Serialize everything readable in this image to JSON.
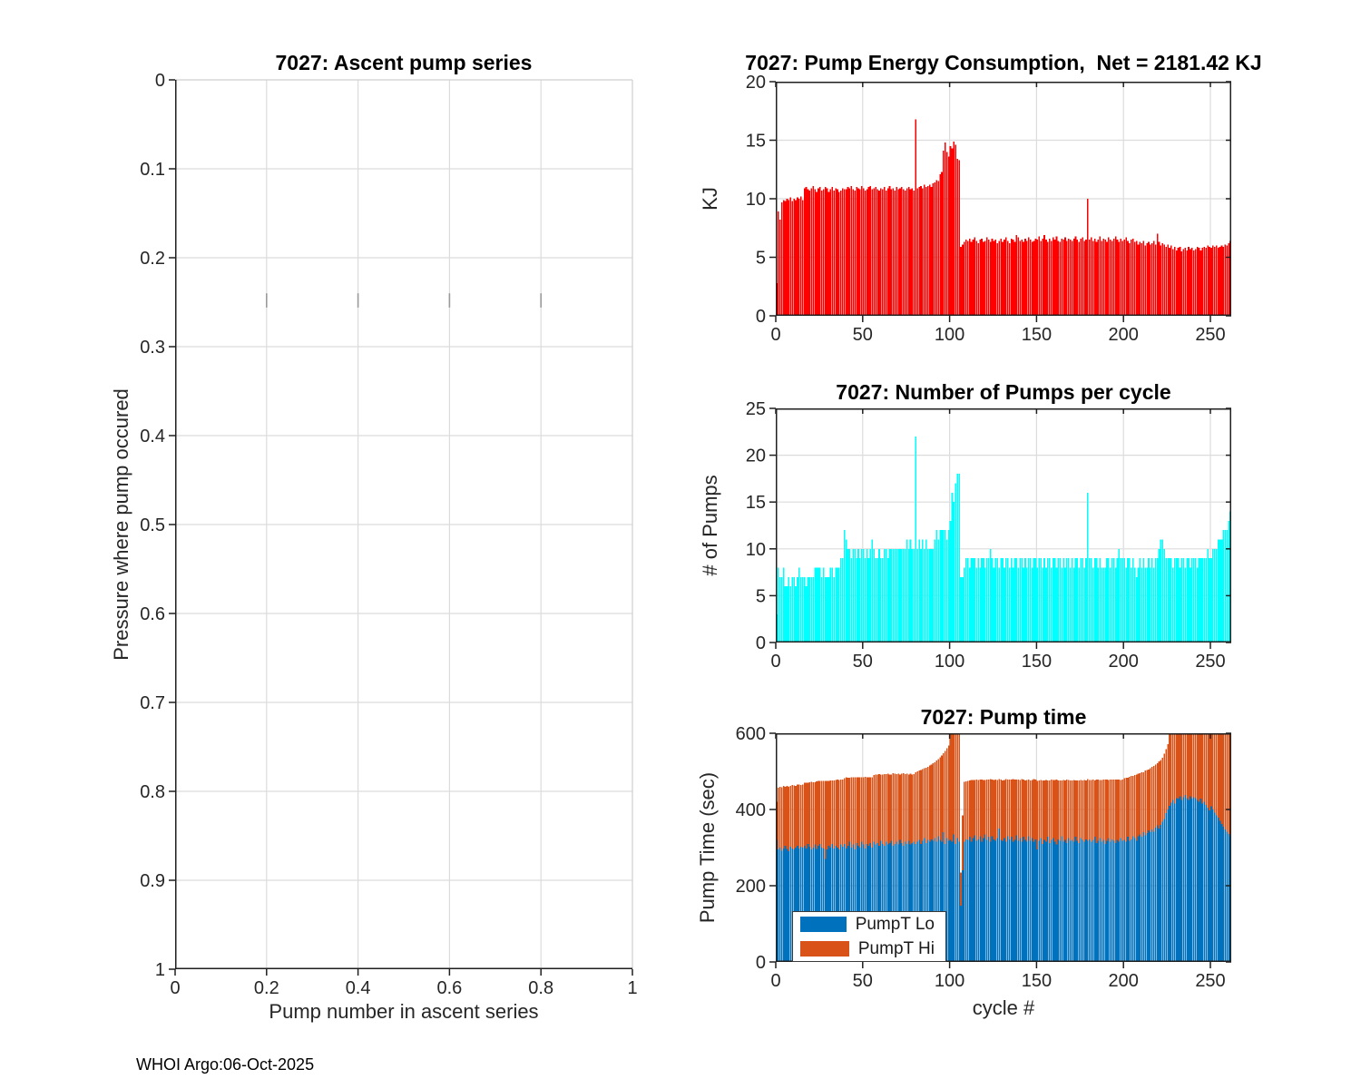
{
  "figure": {
    "footer": "WHOI Argo:06-Oct-2025",
    "background": "#ffffff",
    "axis_color": "#1f1f1f",
    "grid_color": "#dcdcdc",
    "tick_label_color": "#262626"
  },
  "chart_data": [
    {
      "id": "ascent",
      "type": "bar",
      "title": "7027: Ascent pump series",
      "xlabel": "Pump number in ascent series",
      "ylabel": "Pressure where pump occured",
      "xlim": [
        0,
        1
      ],
      "ylim": [
        0,
        1
      ],
      "y_reversed": true,
      "grid": true,
      "xticks": [
        0,
        0.2,
        0.4,
        0.6,
        0.8,
        1
      ],
      "xtick_labels": [
        "0",
        "0.2",
        "0.4",
        "0.6",
        "0.8",
        "1"
      ],
      "yticks": [
        0,
        0.1,
        0.2,
        0.3,
        0.4,
        0.5,
        0.6,
        0.7,
        0.8,
        0.9,
        1
      ],
      "ytick_labels": [
        "0",
        "0.1",
        "0.2",
        "0.3",
        "0.4",
        "0.5",
        "0.6",
        "0.7",
        "0.8",
        "0.9",
        "1"
      ],
      "values": [],
      "note": "empty axes - no pump data plotted",
      "stray_axis_marks": {
        "x": [
          0.2,
          0.4,
          0.6,
          0.8
        ],
        "y_span": [
          0.24,
          0.256
        ]
      }
    },
    {
      "id": "energy",
      "type": "bar",
      "title": "7027: Pump Energy Consumption,  Net = 2181.42 KJ",
      "net_kj": "2181.42",
      "ylabel": "KJ",
      "color": "#ff0000",
      "xlim": [
        0,
        262
      ],
      "ylim": [
        0,
        20
      ],
      "grid": true,
      "xticks": [
        0,
        50,
        100,
        150,
        200,
        250
      ],
      "xtick_labels": [
        "0",
        "50",
        "100",
        "150",
        "200",
        "250"
      ],
      "yticks": [
        0,
        5,
        10,
        15,
        20
      ],
      "ytick_labels": [
        "0",
        "5",
        "10",
        "15",
        "20"
      ],
      "values": [
        2.8,
        8.9,
        8.2,
        9.7,
        9.9,
        9.8,
        10,
        9.9,
        10.1,
        9.8,
        10,
        9.9,
        10.1,
        10,
        10.2,
        9.9,
        10.9,
        11,
        10.8,
        10.7,
        10.9,
        11.1,
        10.8,
        10.6,
        10.9,
        11,
        10.7,
        10.8,
        11,
        10.9,
        10.6,
        10.8,
        11,
        10.7,
        10.9,
        10.8,
        10.6,
        10.7,
        10.9,
        10.8,
        10.8,
        11,
        10.9,
        11.1,
        10.8,
        10.7,
        11,
        10.9,
        10.8,
        11.1,
        10.9,
        10.7,
        10.8,
        11,
        11.1,
        10.8,
        10.9,
        11,
        10.8,
        10.7,
        10.9,
        10.8,
        11,
        10.7,
        10.9,
        11.1,
        10.8,
        10.9,
        10.7,
        11,
        10.8,
        10.9,
        11,
        10.8,
        10.7,
        10.9,
        11,
        10.8,
        10.9,
        10.7,
        16.8,
        10.9,
        11,
        11.1,
        10.9,
        11.2,
        11,
        11.1,
        11.2,
        11,
        11.3,
        11.4,
        11.6,
        11.5,
        12.1,
        12.3,
        14.1,
        14.8,
        14,
        13.6,
        14.5,
        14.3,
        14.9,
        14.6,
        13.4,
        13.3,
        5.9,
        6.1,
        6.3,
        6.5,
        6.4,
        6.6,
        6.3,
        6.5,
        6.7,
        6.4,
        6.2,
        6.5,
        6.6,
        6.3,
        6.4,
        6.7,
        6.5,
        6.3,
        6.6,
        6.4,
        6.5,
        6.2,
        6.4,
        6.6,
        6.3,
        6.5,
        6.7,
        6.4,
        6.2,
        6.6,
        6.5,
        6.3,
        6.9,
        6.7,
        6.4,
        6.5,
        6.3,
        6.6,
        6.4,
        6.7,
        6.5,
        6.3,
        6.4,
        6.6,
        6.5,
        6.8,
        6.4,
        6.6,
        6.9,
        6.5,
        6.3,
        6.6,
        6.4,
        6.7,
        6.5,
        6.8,
        6.4,
        6.3,
        6.6,
        6.5,
        6.7,
        6.4,
        6.6,
        6.5,
        6.4,
        6.6,
        6.8,
        6.5,
        6.3,
        6.6,
        6.7,
        6.4,
        6.5,
        10,
        6.5,
        6.7,
        6.4,
        6.6,
        6.3,
        6.5,
        6.8,
        6.4,
        6.6,
        6.5,
        6.3,
        6.7,
        6.5,
        6.4,
        6.6,
        6.8,
        6.5,
        6.3,
        6.6,
        6.4,
        6.5,
        6.7,
        6.4,
        6.2,
        6.5,
        6.6,
        6.3,
        6.4,
        6.1,
        6.3,
        6.2,
        6.4,
        6,
        6.2,
        6.3,
        6.1,
        6.2,
        6.4,
        6.1,
        7,
        6.3,
        6,
        6.2,
        6.1,
        5.9,
        6.1,
        5.8,
        6,
        5.7,
        5.9,
        5.6,
        5.8,
        5.9,
        5.5,
        5.7,
        5.8,
        5.6,
        5.9,
        5.7,
        5.8,
        5.6,
        5.7,
        5.9,
        5.8,
        5.6,
        5.8,
        5.9,
        5.8,
        6,
        5.9,
        5.8,
        6,
        5.9,
        6,
        5.8,
        5.9,
        6,
        5.9,
        6.1,
        6,
        6.2,
        6.4
      ]
    },
    {
      "id": "pumps",
      "type": "bar",
      "title": "7027: Number of Pumps per cycle",
      "ylabel": "# of Pumps",
      "color": "#00ffff",
      "xlim": [
        0,
        262
      ],
      "ylim": [
        0,
        25
      ],
      "grid": true,
      "xticks": [
        0,
        50,
        100,
        150,
        200,
        250
      ],
      "xtick_labels": [
        "0",
        "50",
        "100",
        "150",
        "200",
        "250"
      ],
      "yticks": [
        0,
        5,
        10,
        15,
        20,
        25
      ],
      "ytick_labels": [
        "0",
        "5",
        "10",
        "15",
        "20",
        "25"
      ],
      "values": [
        3,
        8,
        7,
        7,
        8,
        6,
        6,
        7,
        6,
        7,
        7,
        6,
        7,
        8,
        7,
        7,
        7,
        6,
        7,
        7,
        7,
        7,
        8,
        8,
        8,
        8,
        7,
        8,
        7,
        7,
        7,
        8,
        8,
        7,
        8,
        8,
        8,
        9,
        9,
        12,
        11,
        10,
        10,
        9,
        10,
        10,
        9,
        10,
        9,
        10,
        10,
        9,
        10,
        9,
        10,
        11,
        10,
        9,
        9,
        10,
        9,
        9,
        10,
        10,
        9,
        10,
        10,
        10,
        10,
        10,
        10,
        10,
        10,
        10,
        10,
        11,
        10,
        11,
        10,
        10,
        22,
        10,
        11,
        10,
        11,
        10,
        11,
        10,
        10,
        10,
        10,
        11,
        12,
        11,
        12,
        12,
        12,
        12,
        11,
        12,
        13,
        16,
        15,
        17,
        18,
        18,
        7,
        7,
        8,
        9,
        9,
        8,
        9,
        9,
        9,
        8,
        9,
        8,
        9,
        9,
        8,
        9,
        9,
        10,
        9,
        8,
        9,
        9,
        8,
        9,
        9,
        8,
        9,
        9,
        8,
        9,
        8,
        9,
        9,
        8,
        9,
        9,
        8,
        9,
        8,
        9,
        9,
        8,
        9,
        9,
        8,
        9,
        9,
        8,
        9,
        8,
        9,
        9,
        8,
        9,
        9,
        8,
        9,
        9,
        8,
        9,
        8,
        9,
        9,
        8,
        9,
        8,
        9,
        9,
        8,
        9,
        9,
        8,
        9,
        16,
        9,
        9,
        8,
        9,
        9,
        8,
        9,
        8,
        8,
        8,
        9,
        9,
        8,
        9,
        9,
        8,
        9,
        10,
        9,
        9,
        9,
        8,
        9,
        9,
        8,
        9,
        8,
        7,
        8,
        9,
        8,
        9,
        8,
        8,
        9,
        8,
        9,
        8,
        9,
        9,
        10,
        11,
        11,
        10,
        9,
        9,
        9,
        9,
        8,
        9,
        9,
        9,
        8,
        9,
        9,
        8,
        9,
        9,
        8,
        9,
        9,
        9,
        8,
        9,
        9,
        9,
        9,
        9,
        10,
        9,
        9,
        10,
        10,
        10,
        11,
        11,
        11,
        12,
        12,
        12,
        13,
        14
      ]
    },
    {
      "id": "time",
      "type": "stacked-bar",
      "title": "7027: Pump time",
      "xlabel": "cycle #",
      "ylabel": "Pump Time (sec)",
      "xlim": [
        0,
        262
      ],
      "ylim": [
        0,
        600
      ],
      "grid": true,
      "legend_position": "bottom-left",
      "xticks": [
        0,
        50,
        100,
        150,
        200,
        250
      ],
      "xtick_labels": [
        "0",
        "50",
        "100",
        "150",
        "200",
        "250"
      ],
      "yticks": [
        0,
        200,
        400,
        600
      ],
      "ytick_labels": [
        "0",
        "200",
        "400",
        "600"
      ],
      "series": [
        {
          "name": "PumpT Lo",
          "color": "#0072bd",
          "values": [
            320,
            295,
            300,
            292,
            298,
            305,
            296,
            290,
            302,
            298,
            295,
            300,
            305,
            298,
            302,
            300,
            305,
            298,
            310,
            302,
            295,
            300,
            308,
            296,
            305,
            310,
            300,
            298,
            270,
            295,
            305,
            300,
            310,
            298,
            305,
            300,
            295,
            308,
            302,
            310,
            298,
            305,
            315,
            300,
            308,
            295,
            312,
            305,
            300,
            315,
            308,
            298,
            310,
            305,
            312,
            300,
            315,
            308,
            312,
            305,
            318,
            310,
            305,
            315,
            308,
            312,
            318,
            305,
            310,
            315,
            308,
            320,
            312,
            305,
            315,
            310,
            318,
            308,
            312,
            315,
            310,
            315,
            320,
            310,
            318,
            325,
            312,
            320,
            315,
            322,
            318,
            325,
            315,
            330,
            320,
            315,
            340,
            310,
            325,
            318,
            320,
            315,
            335,
            310,
            325,
            315,
            148,
            240,
            315,
            322,
            320,
            328,
            315,
            325,
            332,
            318,
            322,
            330,
            316,
            325,
            335,
            320,
            328,
            315,
            330,
            322,
            318,
            325,
            350,
            320,
            318,
            325,
            315,
            330,
            322,
            328,
            316,
            320,
            332,
            318,
            325,
            315,
            328,
            320,
            315,
            330,
            318,
            325,
            316,
            322,
            295,
            318,
            325,
            310,
            320,
            315,
            328,
            312,
            320,
            325,
            315,
            308,
            322,
            318,
            330,
            315,
            320,
            312,
            325,
            318,
            320,
            315,
            328,
            318,
            312,
            325,
            320,
            315,
            322,
            318,
            322,
            315,
            320,
            328,
            312,
            318,
            325,
            315,
            320,
            310,
            318,
            325,
            315,
            322,
            318,
            312,
            320,
            315,
            325,
            318,
            320,
            315,
            328,
            318,
            322,
            330,
            325,
            318,
            330,
            335,
            328,
            340,
            332,
            338,
            345,
            340,
            348,
            342,
            352,
            358,
            350,
            360,
            368,
            375,
            390,
            400,
            410,
            418,
            425,
            415,
            430,
            428,
            435,
            425,
            432,
            438,
            430,
            425,
            435,
            428,
            432,
            430,
            425,
            420,
            428,
            415,
            420,
            412,
            405,
            398,
            408,
            400,
            392,
            385,
            378,
            370,
            362,
            355,
            348,
            342,
            336,
            330
          ]
        },
        {
          "name": "PumpT Hi",
          "color": "#d95319",
          "values": [
            100,
            162,
            160,
            166,
            164,
            155,
            166,
            170,
            160,
            166,
            168,
            162,
            160,
            167,
            162,
            165,
            165,
            172,
            160,
            170,
            178,
            172,
            164,
            178,
            170,
            165,
            175,
            177,
            205,
            180,
            170,
            176,
            166,
            178,
            172,
            178,
            182,
            170,
            176,
            172,
            186,
            178,
            168,
            184,
            176,
            190,
            172,
            180,
            185,
            170,
            176,
            188,
            175,
            180,
            172,
            185,
            175,
            184,
            180,
            188,
            174,
            182,
            188,
            178,
            186,
            180,
            174,
            190,
            184,
            178,
            186,
            172,
            182,
            190,
            178,
            184,
            174,
            186,
            180,
            178,
            188,
            185,
            182,
            194,
            188,
            183,
            198,
            192,
            200,
            196,
            203,
            199,
            213,
            202,
            217,
            227,
            208,
            244,
            236,
            250,
            285,
            295,
            270,
            300,
            285,
            295,
            87,
            145,
            158,
            152,
            155,
            148,
            162,
            152,
            145,
            160,
            155,
            148,
            162,
            152,
            142,
            158,
            150,
            165,
            148,
            155,
            160,
            152,
            130,
            158,
            158,
            152,
            165,
            148,
            156,
            150,
            164,
            158,
            146,
            160,
            152,
            165,
            150,
            156,
            162,
            148,
            158,
            152,
            164,
            156,
            180,
            158,
            152,
            166,
            156,
            162,
            148,
            164,
            158,
            152,
            162,
            170,
            154,
            158,
            146,
            162,
            156,
            166,
            152,
            158,
            156,
            162,
            148,
            158,
            164,
            152,
            156,
            162,
            154,
            162,
            155,
            162,
            158,
            148,
            166,
            160,
            152,
            162,
            158,
            168,
            160,
            152,
            164,
            156,
            160,
            166,
            158,
            164,
            152,
            160,
            162,
            168,
            155,
            168,
            166,
            158,
            165,
            174,
            164,
            160,
            170,
            158,
            170,
            165,
            160,
            168,
            164,
            172,
            166,
            164,
            176,
            170,
            168,
            172,
            168,
            172,
            195,
            190,
            182,
            195,
            178,
            180,
            172,
            183,
            176,
            170,
            178,
            183,
            173,
            180,
            176,
            178,
            183,
            188,
            180,
            193,
            185,
            192,
            200,
            207,
            197,
            205,
            213,
            220,
            227,
            235,
            243,
            250,
            255,
            262,
            266,
            273
          ]
        }
      ]
    }
  ]
}
